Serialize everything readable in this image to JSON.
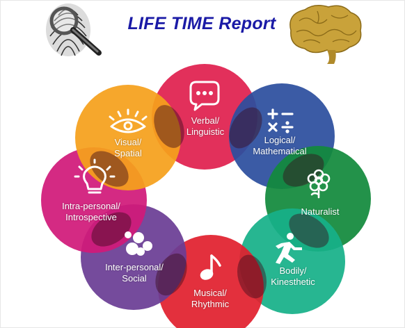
{
  "header": {
    "title": "LIFE TIME Report",
    "left_image_icon": "fingerprint-magnifier-icon",
    "right_image_icon": "brain-icon"
  },
  "colors": {
    "title": "#1a1aa6",
    "verbal": "#e0204f",
    "logical": "#2c4f9e",
    "naturalist": "#128a3c",
    "bodily": "#17b089",
    "musical": "#e1202e",
    "interpersonal": "#6b3d94",
    "intrapersonal": "#d11a7a",
    "visual": "#f5a01c"
  },
  "intelligences": [
    {
      "key": "verbal",
      "label_line1": "Verbal/",
      "label_line2": "Linguistic",
      "icon": "speech-bubble-icon"
    },
    {
      "key": "logical",
      "label_line1": "Logical/",
      "label_line2": "Mathematical",
      "icon": "math-symbols-icon"
    },
    {
      "key": "naturalist",
      "label_line1": "Naturalist",
      "label_line2": "",
      "icon": "flower-icon"
    },
    {
      "key": "bodily",
      "label_line1": "Bodily/",
      "label_line2": "Kinesthetic",
      "icon": "running-person-icon"
    },
    {
      "key": "musical",
      "label_line1": "Musical/",
      "label_line2": "Rhythmic",
      "icon": "music-note-icon"
    },
    {
      "key": "interpersonal",
      "label_line1": "Inter-personal/",
      "label_line2": "Social",
      "icon": "people-group-icon"
    },
    {
      "key": "intrapersonal",
      "label_line1": "Intra-personal/",
      "label_line2": "Introspective",
      "icon": "lightbulb-icon"
    },
    {
      "key": "visual",
      "label_line1": "Visual/",
      "label_line2": "Spatial",
      "icon": "eye-icon"
    }
  ]
}
